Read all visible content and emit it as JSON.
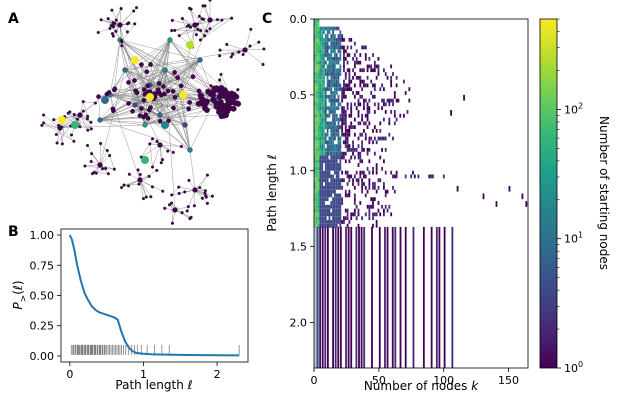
{
  "panels": {
    "a": "A",
    "b": "B",
    "c": "C"
  },
  "colors": {
    "network_edge": "#808080",
    "network_node": "#440154",
    "line": "#1f77b4",
    "rug": "#000000",
    "viridis": [
      "#440154",
      "#482878",
      "#3e4989",
      "#31688e",
      "#26828e",
      "#1f9e89",
      "#35b779",
      "#6ece58",
      "#b5de2b",
      "#fde725"
    ]
  },
  "network": {
    "hub_colors": [
      "#fde725",
      "#fde725",
      "#fde725",
      "#fde725",
      "#b5de2b",
      "#35b779",
      "#35b779",
      "#26828e",
      "#31688e"
    ]
  },
  "chart_data": [
    {
      "panel": "B",
      "type": "line",
      "title": "",
      "xlabel": "Path length ℓ",
      "ylabel": "P_>(ℓ)",
      "ylabel_main": "P",
      "ylabel_sub": ">",
      "ylabel_rest": "(ℓ)",
      "xlim": [
        -0.12,
        2.42
      ],
      "ylim": [
        -0.05,
        1.05
      ],
      "xticks": [
        0,
        1,
        2
      ],
      "xtick_labels": [
        "0",
        "1",
        "2"
      ],
      "yticks": [
        0,
        0.25,
        0.5,
        0.75,
        1.0
      ],
      "ytick_labels": [
        "0.00",
        "0.25",
        "0.50",
        "0.75",
        "1.00"
      ],
      "x": [
        0,
        0.03,
        0.06,
        0.1,
        0.15,
        0.2,
        0.25,
        0.3,
        0.35,
        0.4,
        0.45,
        0.5,
        0.55,
        0.6,
        0.65,
        0.7,
        0.75,
        0.8,
        0.85,
        0.9,
        1.0,
        1.1,
        1.2,
        1.4,
        1.6,
        1.8,
        2.0,
        2.3
      ],
      "y": [
        1.0,
        0.96,
        0.88,
        0.75,
        0.62,
        0.52,
        0.46,
        0.41,
        0.38,
        0.36,
        0.35,
        0.34,
        0.33,
        0.32,
        0.3,
        0.2,
        0.12,
        0.07,
        0.04,
        0.025,
        0.018,
        0.014,
        0.012,
        0.01,
        0.008,
        0.007,
        0.006,
        0.005
      ],
      "rug_x": [
        0.02,
        0.04,
        0.05,
        0.07,
        0.08,
        0.1,
        0.11,
        0.12,
        0.13,
        0.15,
        0.16,
        0.17,
        0.18,
        0.2,
        0.21,
        0.22,
        0.24,
        0.25,
        0.26,
        0.28,
        0.29,
        0.3,
        0.31,
        0.33,
        0.34,
        0.35,
        0.37,
        0.38,
        0.4,
        0.41,
        0.42,
        0.44,
        0.45,
        0.47,
        0.48,
        0.5,
        0.52,
        0.54,
        0.56,
        0.58,
        0.6,
        0.62,
        0.64,
        0.66,
        0.68,
        0.7,
        0.73,
        0.76,
        0.8,
        0.84,
        0.88,
        0.92,
        0.97,
        1.05,
        1.15,
        1.25,
        1.35,
        2.3
      ],
      "rug_y": 0.05
    },
    {
      "panel": "C",
      "type": "heatmap",
      "xlabel": "Number of nodes k",
      "xlabel_main": "Number of nodes ",
      "xlabel_var": "k",
      "ylabel": "Path length ℓ",
      "xlim": [
        0,
        165
      ],
      "ylim": [
        2.3,
        0.0
      ],
      "xticks": [
        0,
        50,
        100,
        150
      ],
      "xtick_labels": [
        "0",
        "50",
        "100",
        "150"
      ],
      "yticks": [
        0.0,
        0.5,
        1.0,
        1.5,
        2.0
      ],
      "ytick_labels": [
        "0.0",
        "0.5",
        "1.0",
        "1.5",
        "2.0"
      ],
      "frontier": [
        [
          0.0,
          3
        ],
        [
          0.05,
          20
        ],
        [
          0.1,
          30
        ],
        [
          0.15,
          40
        ],
        [
          0.2,
          50
        ],
        [
          0.25,
          55
        ],
        [
          0.3,
          60
        ],
        [
          0.35,
          65
        ],
        [
          0.4,
          70
        ],
        [
          0.45,
          75
        ],
        [
          0.5,
          80
        ],
        [
          0.55,
          70
        ],
        [
          0.6,
          75
        ],
        [
          0.65,
          70
        ],
        [
          0.7,
          60
        ],
        [
          0.75,
          65
        ],
        [
          0.8,
          50
        ],
        [
          0.85,
          60
        ],
        [
          0.9,
          60
        ],
        [
          0.95,
          55
        ],
        [
          1.0,
          100
        ],
        [
          1.05,
          60
        ],
        [
          1.1,
          65
        ],
        [
          1.15,
          60
        ],
        [
          1.2,
          65
        ],
        [
          1.25,
          70
        ],
        [
          1.3,
          55
        ],
        [
          1.35,
          55
        ]
      ],
      "long_columns_k": [
        2,
        4,
        6,
        8,
        10,
        14,
        16,
        18,
        20,
        24,
        26,
        28,
        32,
        34,
        36,
        38,
        44,
        50,
        54,
        56,
        60,
        62,
        66,
        70,
        76,
        84,
        90,
        94,
        96,
        100,
        106
      ],
      "far_points": [
        [
          1.1,
          110
        ],
        [
          1.15,
          130
        ],
        [
          1.2,
          140
        ],
        [
          1.1,
          150
        ],
        [
          1.15,
          160
        ],
        [
          1.2,
          163
        ],
        [
          0.5,
          115
        ],
        [
          0.6,
          105
        ]
      ],
      "colorbar": {
        "label": "Number of starting nodes",
        "scale": "log",
        "range": [
          1,
          500
        ],
        "ticks": [
          1,
          10,
          100
        ],
        "tick_base": "10",
        "tick_exponents": [
          "0",
          "1",
          "2"
        ]
      }
    }
  ]
}
